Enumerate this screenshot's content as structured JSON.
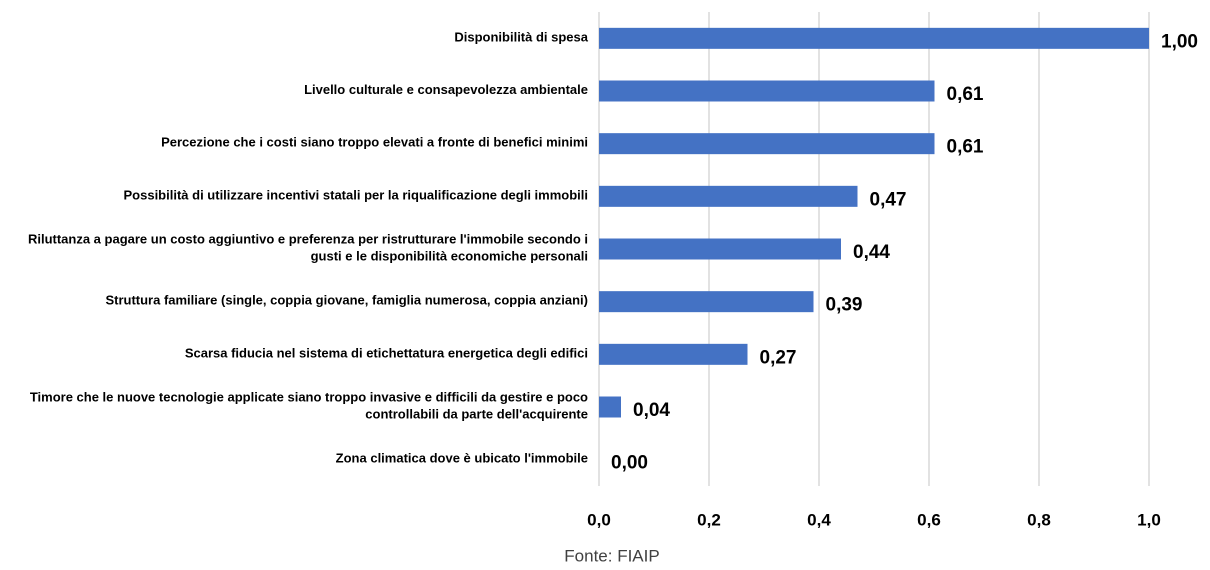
{
  "chart_data": {
    "type": "bar",
    "orientation": "horizontal",
    "categories": [
      "Disponibilità di spesa",
      "Livello culturale e consapevolezza ambientale",
      "Percezione che i costi siano troppo elevati a fronte di benefici minimi",
      "Possibilità di utilizzare incentivi statali per la riqualificazione degli immobili",
      "Riluttanza a pagare un costo aggiuntivo e preferenza per ristrutturare l'immobile secondo i gusti e le disponibilità economiche personali",
      "Struttura familiare (single, coppia giovane, famiglia numerosa, coppia anziani)",
      "Scarsa fiducia nel sistema di etichettatura energetica degli edifici",
      "Timore che le nuove tecnologie applicate siano troppo invasive e difficili da gestire e poco controllabili da parte dell'acquirente",
      "Zona climatica dove è ubicato l'immobile"
    ],
    "values": [
      1.0,
      0.61,
      0.61,
      0.47,
      0.44,
      0.39,
      0.27,
      0.04,
      0.0
    ],
    "value_labels": [
      "1,00",
      "0,61",
      "0,61",
      "0,47",
      "0,44",
      "0,39",
      "0,27",
      "0,04",
      "0,00"
    ],
    "color": "#4472c4",
    "xlim": [
      0,
      1
    ],
    "xticks": [
      {
        "value": 0,
        "label": "0,0"
      },
      {
        "value": 0.2,
        "label": "0,2"
      },
      {
        "value": 0.4,
        "label": "0,4"
      },
      {
        "value": 0.6,
        "label": "0,6"
      },
      {
        "value": 0.8,
        "label": "0,8"
      },
      {
        "value": 1,
        "label": "1,0"
      }
    ],
    "grid": true,
    "source": "Fonte: FIAIP"
  }
}
